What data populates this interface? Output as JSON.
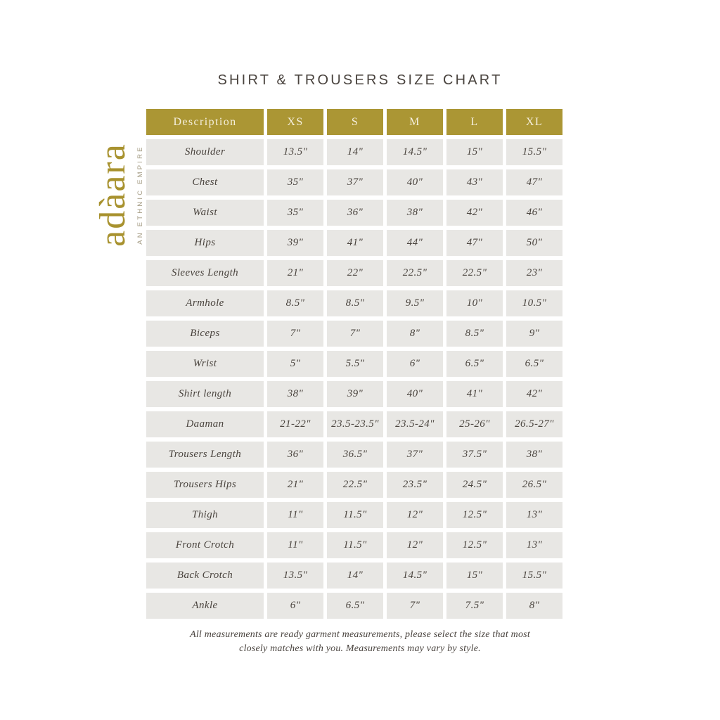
{
  "page": {
    "title": "SHIRT & TROUSERS SIZE CHART",
    "footer": {
      "line1": "All measurements are ready garment measurements, please select the size that most",
      "line2": "closely matches with you. Measurements may vary by style."
    },
    "colors": {
      "gold": "#ab9634",
      "header_text": "#f5efdd",
      "cell_background": "#e8e7e4",
      "text_dark": "#49433e",
      "background": "#ffffff"
    }
  },
  "logo": {
    "brand": "adàara",
    "tagline": "AN ETHNIC EMPIRE"
  },
  "chart_data": {
    "type": "table",
    "title": "SHIRT & TROUSERS SIZE CHART",
    "columns": [
      "Description",
      "XS",
      "S",
      "M",
      "L",
      "XL"
    ],
    "rows": [
      {
        "label": "Shoulder",
        "values": [
          "13.5\"",
          "14\"",
          "14.5\"",
          "15\"",
          "15.5\""
        ]
      },
      {
        "label": "Chest",
        "values": [
          "35\"",
          "37\"",
          "40\"",
          "43\"",
          "47\""
        ]
      },
      {
        "label": "Waist",
        "values": [
          "35\"",
          "36\"",
          "38\"",
          "42\"",
          "46\""
        ]
      },
      {
        "label": "Hips",
        "values": [
          "39\"",
          "41\"",
          "44\"",
          "47\"",
          "50\""
        ]
      },
      {
        "label": "Sleeves Length",
        "values": [
          "21\"",
          "22\"",
          "22.5\"",
          "22.5\"",
          "23\""
        ]
      },
      {
        "label": "Armhole",
        "values": [
          "8.5\"",
          "8.5\"",
          "9.5\"",
          "10\"",
          "10.5\""
        ]
      },
      {
        "label": "Biceps",
        "values": [
          "7\"",
          "7\"",
          "8\"",
          "8.5\"",
          "9\""
        ]
      },
      {
        "label": "Wrist",
        "values": [
          "5\"",
          "5.5\"",
          "6\"",
          "6.5\"",
          "6.5\""
        ]
      },
      {
        "label": "Shirt length",
        "values": [
          "38\"",
          "39\"",
          "40\"",
          "41\"",
          "42\""
        ]
      },
      {
        "label": "Daaman",
        "values": [
          "21-22\"",
          "23.5-23.5\"",
          "23.5-24\"",
          "25-26\"",
          "26.5-27\""
        ]
      },
      {
        "label": "Trousers Length",
        "values": [
          "36\"",
          "36.5\"",
          "37\"",
          "37.5\"",
          "38\""
        ]
      },
      {
        "label": "Trousers Hips",
        "values": [
          "21\"",
          "22.5\"",
          "23.5\"",
          "24.5\"",
          "26.5\""
        ]
      },
      {
        "label": "Thigh",
        "values": [
          "11\"",
          "11.5\"",
          "12\"",
          "12.5\"",
          "13\""
        ]
      },
      {
        "label": "Front Crotch",
        "values": [
          "11\"",
          "11.5\"",
          "12\"",
          "12.5\"",
          "13\""
        ]
      },
      {
        "label": "Back Crotch",
        "values": [
          "13.5\"",
          "14\"",
          "14.5\"",
          "15\"",
          "15.5\""
        ]
      },
      {
        "label": "Ankle",
        "values": [
          "6\"",
          "6.5\"",
          "7\"",
          "7.5\"",
          "8\""
        ]
      }
    ]
  }
}
